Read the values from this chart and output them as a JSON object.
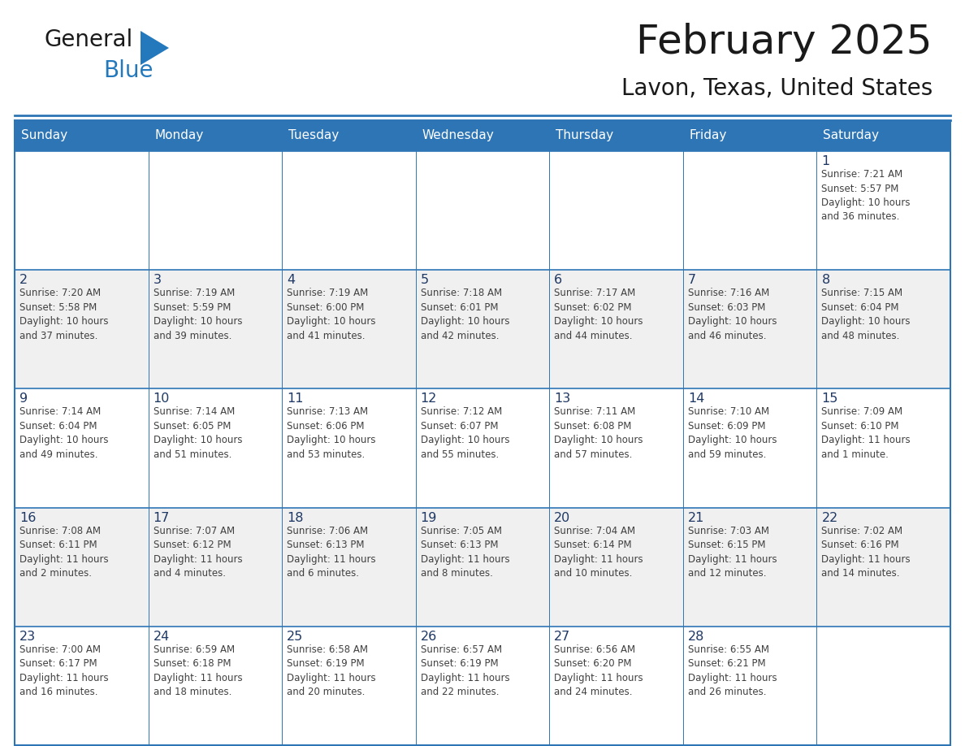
{
  "title": "February 2025",
  "subtitle": "Lavon, Texas, United States",
  "header_color": "#2E75B6",
  "header_text_color": "#FFFFFF",
  "border_color": "#2E75B6",
  "grid_color": "#A0A0A0",
  "number_color": "#1F3864",
  "text_color": "#404040",
  "days_of_week": [
    "Sunday",
    "Monday",
    "Tuesday",
    "Wednesday",
    "Thursday",
    "Friday",
    "Saturday"
  ],
  "weeks": [
    [
      {
        "day": null,
        "info": ""
      },
      {
        "day": null,
        "info": ""
      },
      {
        "day": null,
        "info": ""
      },
      {
        "day": null,
        "info": ""
      },
      {
        "day": null,
        "info": ""
      },
      {
        "day": null,
        "info": ""
      },
      {
        "day": 1,
        "info": "Sunrise: 7:21 AM\nSunset: 5:57 PM\nDaylight: 10 hours\nand 36 minutes."
      }
    ],
    [
      {
        "day": 2,
        "info": "Sunrise: 7:20 AM\nSunset: 5:58 PM\nDaylight: 10 hours\nand 37 minutes."
      },
      {
        "day": 3,
        "info": "Sunrise: 7:19 AM\nSunset: 5:59 PM\nDaylight: 10 hours\nand 39 minutes."
      },
      {
        "day": 4,
        "info": "Sunrise: 7:19 AM\nSunset: 6:00 PM\nDaylight: 10 hours\nand 41 minutes."
      },
      {
        "day": 5,
        "info": "Sunrise: 7:18 AM\nSunset: 6:01 PM\nDaylight: 10 hours\nand 42 minutes."
      },
      {
        "day": 6,
        "info": "Sunrise: 7:17 AM\nSunset: 6:02 PM\nDaylight: 10 hours\nand 44 minutes."
      },
      {
        "day": 7,
        "info": "Sunrise: 7:16 AM\nSunset: 6:03 PM\nDaylight: 10 hours\nand 46 minutes."
      },
      {
        "day": 8,
        "info": "Sunrise: 7:15 AM\nSunset: 6:04 PM\nDaylight: 10 hours\nand 48 minutes."
      }
    ],
    [
      {
        "day": 9,
        "info": "Sunrise: 7:14 AM\nSunset: 6:04 PM\nDaylight: 10 hours\nand 49 minutes."
      },
      {
        "day": 10,
        "info": "Sunrise: 7:14 AM\nSunset: 6:05 PM\nDaylight: 10 hours\nand 51 minutes."
      },
      {
        "day": 11,
        "info": "Sunrise: 7:13 AM\nSunset: 6:06 PM\nDaylight: 10 hours\nand 53 minutes."
      },
      {
        "day": 12,
        "info": "Sunrise: 7:12 AM\nSunset: 6:07 PM\nDaylight: 10 hours\nand 55 minutes."
      },
      {
        "day": 13,
        "info": "Sunrise: 7:11 AM\nSunset: 6:08 PM\nDaylight: 10 hours\nand 57 minutes."
      },
      {
        "day": 14,
        "info": "Sunrise: 7:10 AM\nSunset: 6:09 PM\nDaylight: 10 hours\nand 59 minutes."
      },
      {
        "day": 15,
        "info": "Sunrise: 7:09 AM\nSunset: 6:10 PM\nDaylight: 11 hours\nand 1 minute."
      }
    ],
    [
      {
        "day": 16,
        "info": "Sunrise: 7:08 AM\nSunset: 6:11 PM\nDaylight: 11 hours\nand 2 minutes."
      },
      {
        "day": 17,
        "info": "Sunrise: 7:07 AM\nSunset: 6:12 PM\nDaylight: 11 hours\nand 4 minutes."
      },
      {
        "day": 18,
        "info": "Sunrise: 7:06 AM\nSunset: 6:13 PM\nDaylight: 11 hours\nand 6 minutes."
      },
      {
        "day": 19,
        "info": "Sunrise: 7:05 AM\nSunset: 6:13 PM\nDaylight: 11 hours\nand 8 minutes."
      },
      {
        "day": 20,
        "info": "Sunrise: 7:04 AM\nSunset: 6:14 PM\nDaylight: 11 hours\nand 10 minutes."
      },
      {
        "day": 21,
        "info": "Sunrise: 7:03 AM\nSunset: 6:15 PM\nDaylight: 11 hours\nand 12 minutes."
      },
      {
        "day": 22,
        "info": "Sunrise: 7:02 AM\nSunset: 6:16 PM\nDaylight: 11 hours\nand 14 minutes."
      }
    ],
    [
      {
        "day": 23,
        "info": "Sunrise: 7:00 AM\nSunset: 6:17 PM\nDaylight: 11 hours\nand 16 minutes."
      },
      {
        "day": 24,
        "info": "Sunrise: 6:59 AM\nSunset: 6:18 PM\nDaylight: 11 hours\nand 18 minutes."
      },
      {
        "day": 25,
        "info": "Sunrise: 6:58 AM\nSunset: 6:19 PM\nDaylight: 11 hours\nand 20 minutes."
      },
      {
        "day": 26,
        "info": "Sunrise: 6:57 AM\nSunset: 6:19 PM\nDaylight: 11 hours\nand 22 minutes."
      },
      {
        "day": 27,
        "info": "Sunrise: 6:56 AM\nSunset: 6:20 PM\nDaylight: 11 hours\nand 24 minutes."
      },
      {
        "day": 28,
        "info": "Sunrise: 6:55 AM\nSunset: 6:21 PM\nDaylight: 11 hours\nand 26 minutes."
      },
      {
        "day": null,
        "info": ""
      }
    ]
  ],
  "logo_color_general": "#1a1a1a",
  "logo_color_blue": "#2479BD",
  "logo_triangle_color": "#2479BD",
  "fig_width": 11.88,
  "fig_height": 9.18,
  "dpi": 100
}
